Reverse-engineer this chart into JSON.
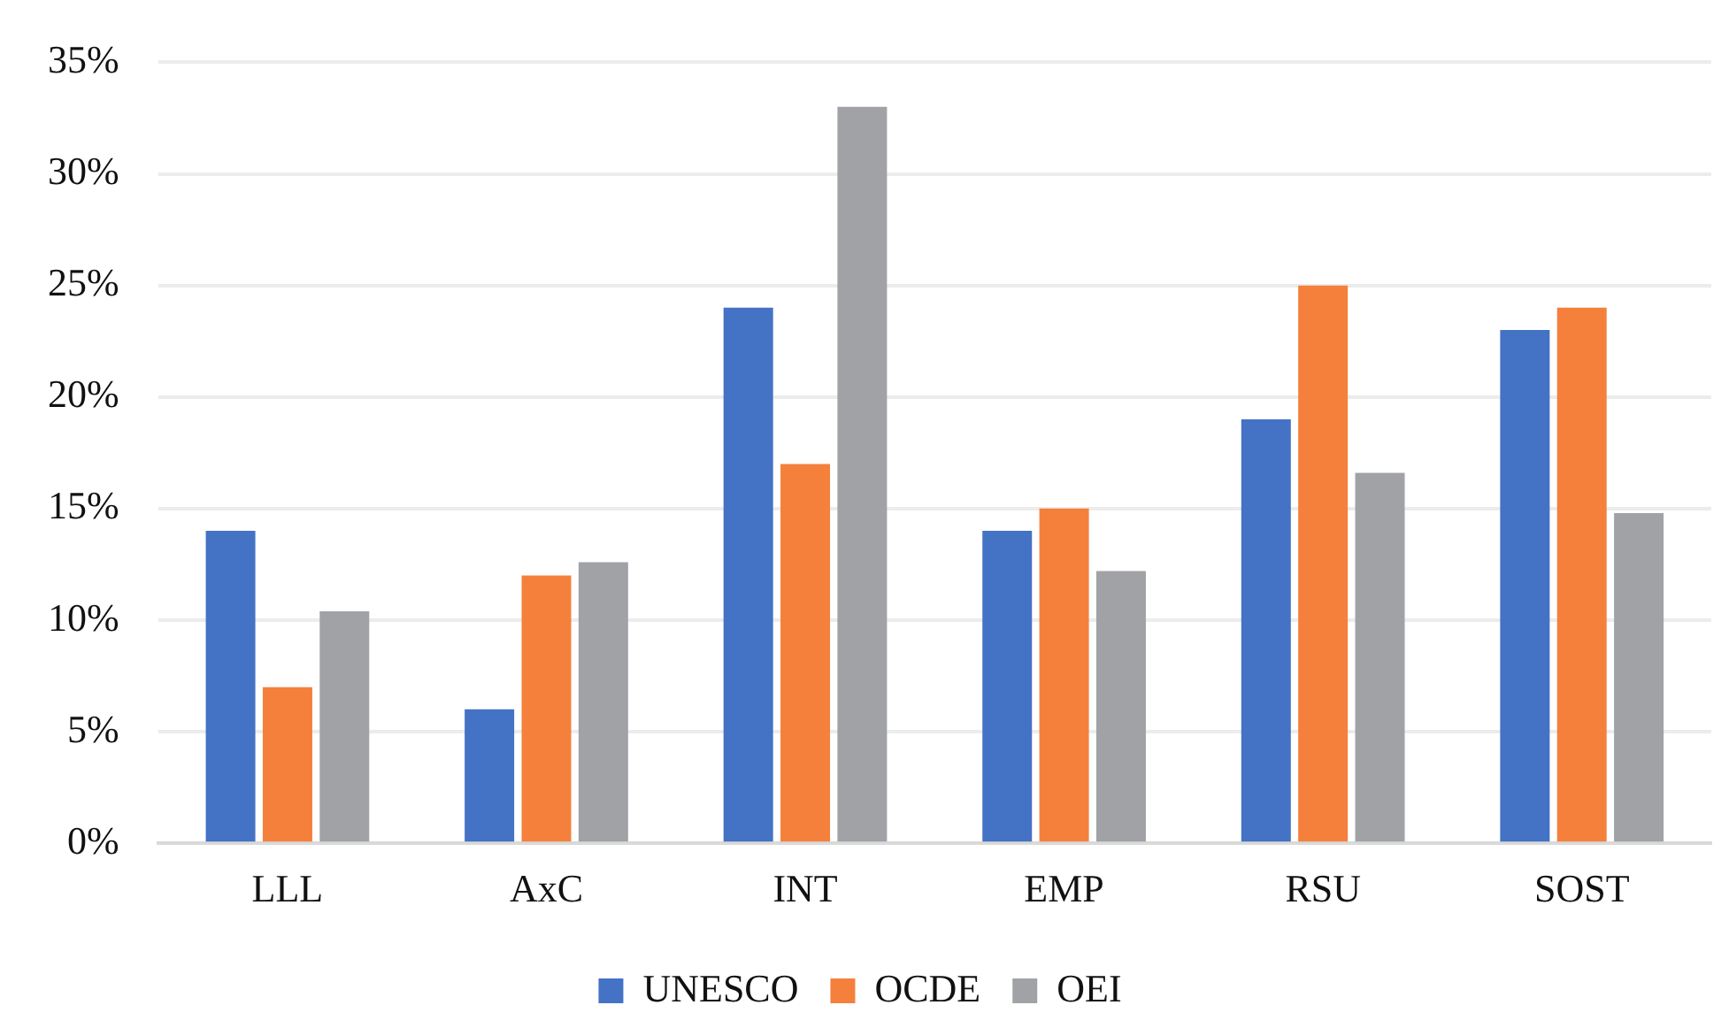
{
  "chart_data": {
    "type": "bar",
    "categories": [
      "LLL",
      "AxC",
      "INT",
      "EMP",
      "RSU",
      "SOST"
    ],
    "series": [
      {
        "name": "UNESCO",
        "color": "#4472c4",
        "values": [
          14,
          6,
          24,
          14,
          19,
          23
        ]
      },
      {
        "name": "OCDE",
        "color": "#f4803c",
        "values": [
          7,
          12,
          17,
          15,
          25,
          24
        ]
      },
      {
        "name": "OEI",
        "color": "#a0a2a6",
        "values": [
          10.4,
          12.6,
          33,
          12.2,
          16.6,
          14.8
        ]
      }
    ],
    "ylim": [
      0,
      35
    ],
    "yticks": [
      {
        "value": 0,
        "label": "0%"
      },
      {
        "value": 5,
        "label": "5%"
      },
      {
        "value": 10,
        "label": "10%"
      },
      {
        "value": 15,
        "label": "15%"
      },
      {
        "value": 20,
        "label": "20%"
      },
      {
        "value": 25,
        "label": "25%"
      },
      {
        "value": 30,
        "label": "30%"
      },
      {
        "value": 35,
        "label": "35%"
      }
    ],
    "grid": "y",
    "legend": "bottom"
  }
}
